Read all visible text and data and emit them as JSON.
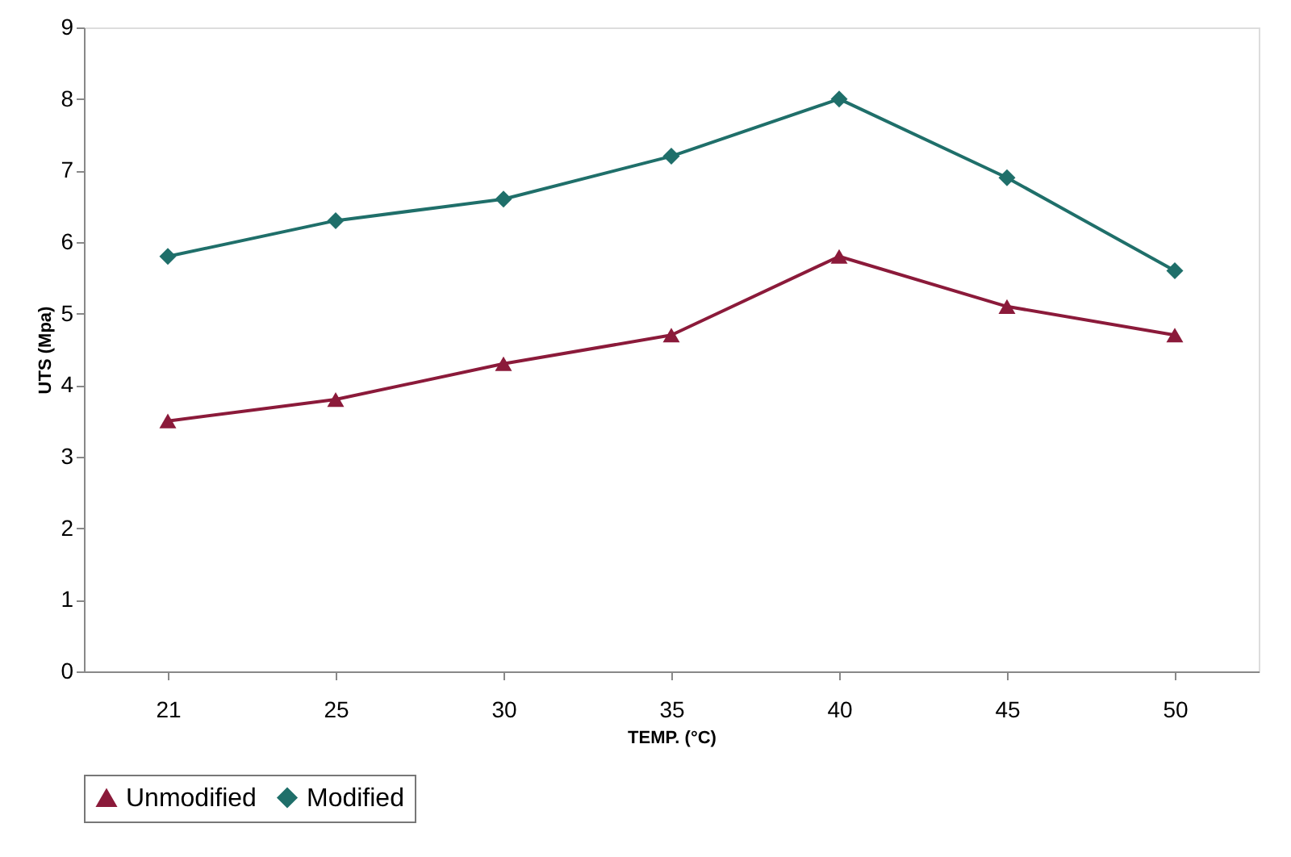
{
  "chart_data": {
    "type": "line",
    "xlabel": "TEMP. (°C)",
    "ylabel": "UTS (Mpa)",
    "categories": [
      "21",
      "25",
      "30",
      "35",
      "40",
      "45",
      "50"
    ],
    "series": [
      {
        "name": "Unmodified",
        "color": "#8b1a3a",
        "marker": "triangle",
        "values": [
          3.5,
          3.8,
          4.3,
          4.7,
          5.8,
          5.1,
          4.7
        ]
      },
      {
        "name": "Modified",
        "color": "#1f6f6a",
        "marker": "diamond",
        "values": [
          5.8,
          6.3,
          6.6,
          7.2,
          8.0,
          6.9,
          5.6
        ]
      }
    ],
    "ylim": [
      0,
      9
    ],
    "yticks": [
      0,
      1,
      2,
      3,
      4,
      5,
      6,
      7,
      8,
      9
    ],
    "grid": false,
    "legend": "bottom"
  }
}
